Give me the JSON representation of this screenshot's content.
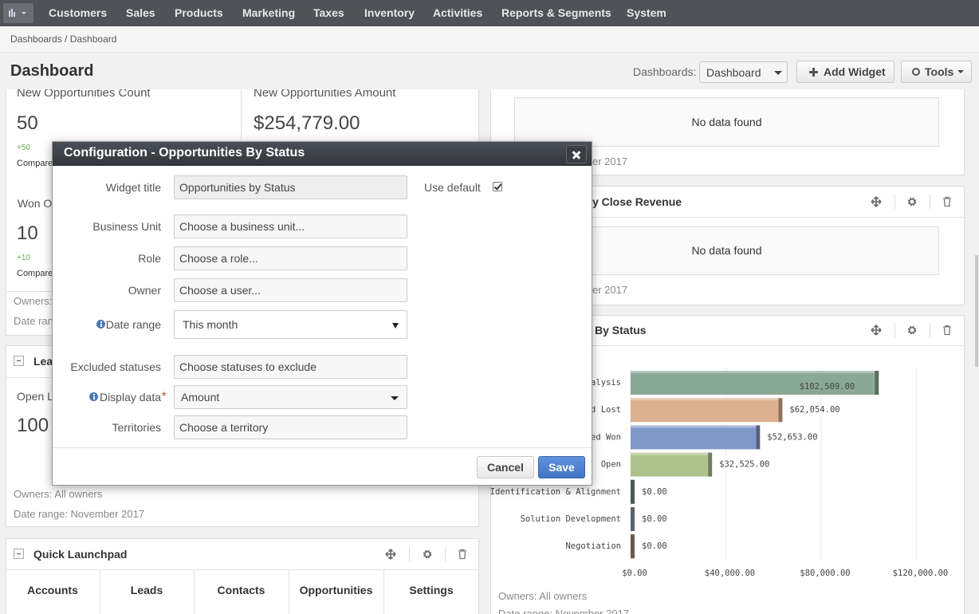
{
  "nav": {
    "items": [
      "Customers",
      "Sales",
      "Products",
      "Marketing",
      "Taxes",
      "Inventory",
      "Activities",
      "Reports & Segments",
      "System"
    ]
  },
  "breadcrumb": "Dashboards / Dashboard",
  "header": {
    "title": "Dashboard",
    "dashboards_label": "Dashboards:",
    "dashboard_select": "Dashboard",
    "add_widget": "Add Widget",
    "tools": "Tools"
  },
  "left": {
    "metrics": {
      "count_title": "New Opportunities Count",
      "amount_title": "New Opportunities Amount",
      "count_value": "50",
      "amount_value": "$254,779.00",
      "count_change": "+50",
      "count_compare": "Compare",
      "won_title": "Won O",
      "won_value": "10",
      "won_change": "+10",
      "won_compare": "Compare",
      "owners": "Owners:",
      "date_range": "Date ran"
    },
    "leads": {
      "title": "Lea",
      "metric_title": "Open L",
      "metric_value": "100",
      "owners": "Owners: All owners",
      "date_range": "Date range: November 2017"
    },
    "launchpad": {
      "title": "Quick Launchpad",
      "items": [
        "Accounts",
        "Leads",
        "Contacts",
        "Opportunities",
        "Settings"
      ]
    }
  },
  "right": {
    "widget1": {
      "empty": "No data found",
      "date_range": "er 2017"
    },
    "widget2": {
      "title": "y Close Revenue",
      "empty": "No data found",
      "date_range": "er 2017"
    },
    "widget3": {
      "title": "By Status",
      "chart": {
        "type": "bar",
        "categories": [
          "nalysis",
          "ed Lost",
          "ed Won",
          "Open",
          "Identification & Alignment",
          "Solution Development",
          "Negotiation"
        ],
        "values": [
          102509,
          62054,
          52653,
          32525,
          0,
          0,
          0
        ],
        "value_labels": [
          "$102,509.00",
          "$62,054.00",
          "$52,653.00",
          "$32,525.00",
          "$0.00",
          "$0.00",
          "$0.00"
        ],
        "colors": [
          "#8aa896",
          "#dcb090",
          "#8098c8",
          "#aec28e",
          "#6f8a7c",
          "#8a9aa8",
          "#a08a72"
        ],
        "xlim": [
          0,
          120000
        ],
        "xticks": [
          {
            "value": 0,
            "label": "$0.00"
          },
          {
            "value": 40000,
            "label": "$40,000.00"
          },
          {
            "value": 80000,
            "label": "$80,000.00"
          },
          {
            "value": 120000,
            "label": "$120,000.00"
          }
        ]
      },
      "owners": "Owners: All owners",
      "date_range": "Date range: November 2017"
    }
  },
  "modal": {
    "title": "Configuration - Opportunities By Status",
    "fields": [
      {
        "label": "Widget title",
        "text": "Opportunities by Status"
      },
      {
        "label": "Business Unit",
        "text": "Choose a business unit..."
      },
      {
        "label": "Role",
        "text": "Choose a role..."
      },
      {
        "label": "Owner",
        "text": "Choose a user..."
      },
      {
        "label": "Date range",
        "text": "This month"
      },
      {
        "label": "Excluded statuses",
        "text": "Choose statuses to exclude"
      },
      {
        "label": "Display data",
        "text": "Amount"
      },
      {
        "label": "Territories",
        "text": "Choose a territory"
      }
    ],
    "use_default": "Use default",
    "required_mark": "*",
    "cancel": "Cancel",
    "save": "Save"
  }
}
